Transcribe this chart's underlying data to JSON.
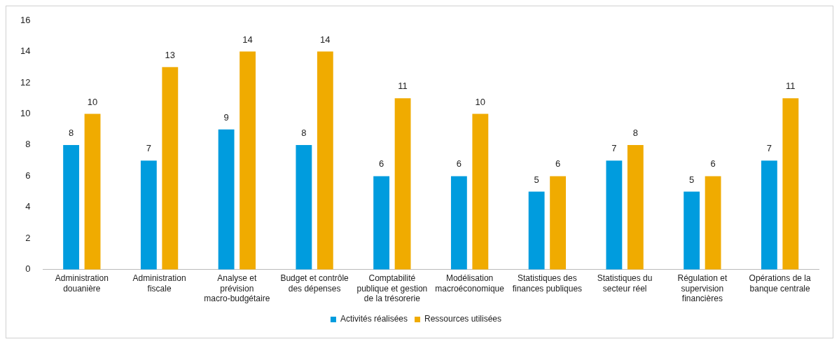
{
  "chart_data": {
    "type": "bar",
    "categories": [
      "Administration douanière",
      "Administration fiscale",
      "Analyse et prévision macro-budgétaire",
      "Budget et contrôle des dépenses",
      "Comptabilité publique et gestion de la trésorerie",
      "Modélisation macroéconomique",
      "Statistiques des finances publiques",
      "Statistiques du secteur réel",
      "Régulation et supervision financières",
      "Opérations de la banque centrale"
    ],
    "series": [
      {
        "name": "Activités réalisées",
        "color": "#009cde",
        "values": [
          8,
          7,
          9,
          8,
          6,
          6,
          5,
          7,
          5,
          7
        ]
      },
      {
        "name": "Ressources utilisées",
        "color": "#f0ab00",
        "values": [
          10,
          13,
          14,
          14,
          11,
          10,
          6,
          8,
          6,
          11
        ]
      }
    ],
    "ylim": [
      0,
      16
    ],
    "yticks": [
      0,
      2,
      4,
      6,
      8,
      10,
      12,
      14,
      16
    ],
    "grid": false,
    "legend": "bottom",
    "data_labels": true
  }
}
